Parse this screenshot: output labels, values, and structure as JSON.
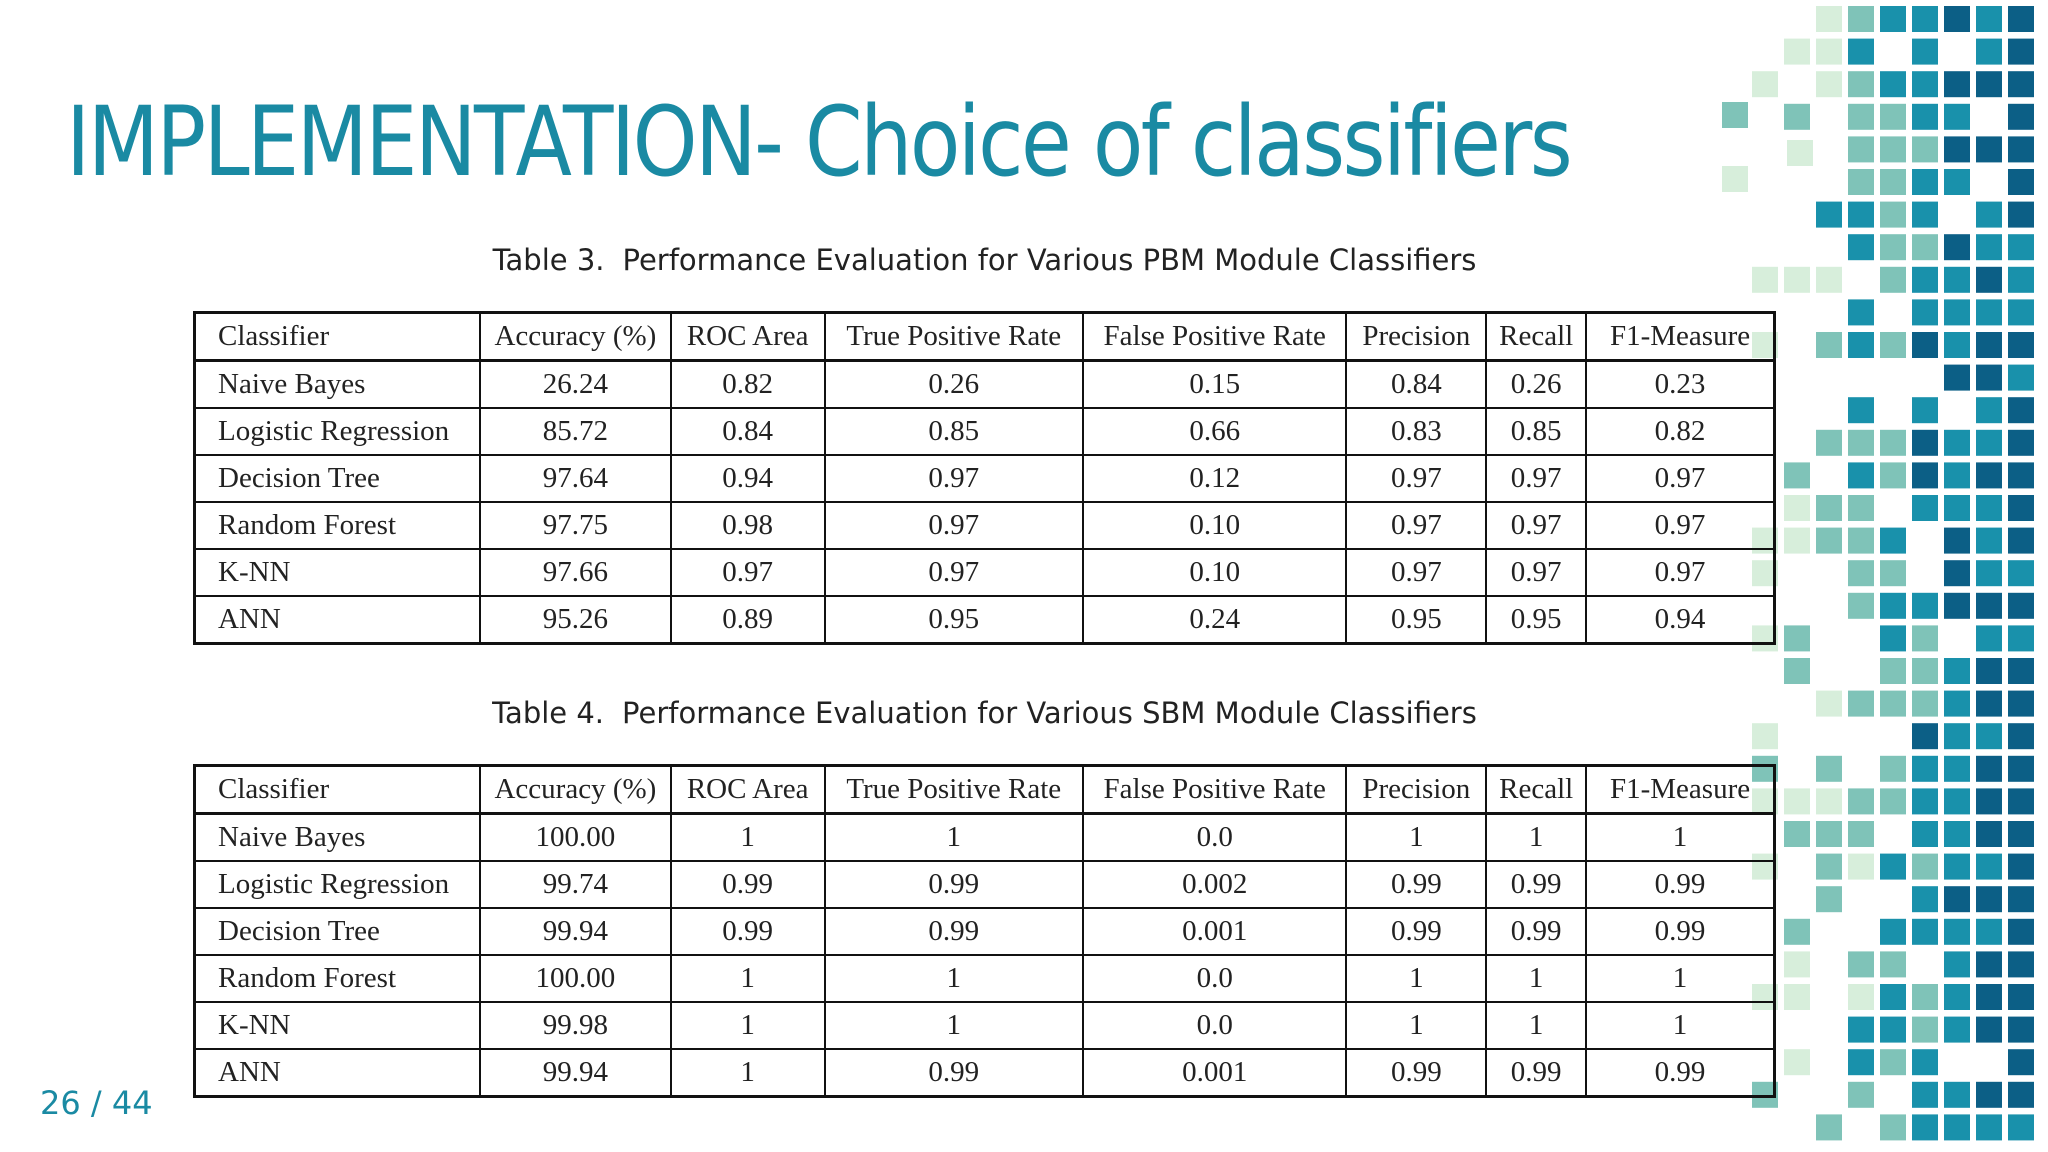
{
  "title": "IMPLEMENTATION- Choice of classifiers",
  "page": {
    "current": "26",
    "sep": " / ",
    "total": "44"
  },
  "tables": [
    {
      "caption_num": "Table 3.",
      "caption_text": "Performance Evaluation for Various PBM Module Classifiers",
      "headers": [
        "Classifier",
        "Accuracy (%)",
        "ROC Area",
        "True Positive Rate",
        "False Positive Rate",
        "Precision",
        "Recall",
        "F1-Measure"
      ],
      "rows": [
        [
          "Naive Bayes",
          "26.24",
          "0.82",
          "0.26",
          "0.15",
          "0.84",
          "0.26",
          "0.23"
        ],
        [
          "Logistic Regression",
          "85.72",
          "0.84",
          "0.85",
          "0.66",
          "0.83",
          "0.85",
          "0.82"
        ],
        [
          "Decision Tree",
          "97.64",
          "0.94",
          "0.97",
          "0.12",
          "0.97",
          "0.97",
          "0.97"
        ],
        [
          "Random Forest",
          "97.75",
          "0.98",
          "0.97",
          "0.10",
          "0.97",
          "0.97",
          "0.97"
        ],
        [
          "K-NN",
          "97.66",
          "0.97",
          "0.97",
          "0.10",
          "0.97",
          "0.97",
          "0.97"
        ],
        [
          "ANN",
          "95.26",
          "0.89",
          "0.95",
          "0.24",
          "0.95",
          "0.95",
          "0.94"
        ]
      ]
    },
    {
      "caption_num": "Table 4.",
      "caption_text": "Performance Evaluation for Various SBM Module Classifiers",
      "headers": [
        "Classifier",
        "Accuracy (%)",
        "ROC Area",
        "True Positive Rate",
        "False Positive Rate",
        "Precision",
        "Recall",
        "F1-Measure"
      ],
      "rows": [
        [
          "Naive Bayes",
          "100.00",
          "1",
          "1",
          "0.0",
          "1",
          "1",
          "1"
        ],
        [
          "Logistic Regression",
          "99.74",
          "0.99",
          "0.99",
          "0.002",
          "0.99",
          "0.99",
          "0.99"
        ],
        [
          "Decision Tree",
          "99.94",
          "0.99",
          "0.99",
          "0.001",
          "0.99",
          "0.99",
          "0.99"
        ],
        [
          "Random Forest",
          "100.00",
          "1",
          "1",
          "0.0",
          "1",
          "1",
          "1"
        ],
        [
          "K-NN",
          "99.98",
          "1",
          "1",
          "0.0",
          "1",
          "1",
          "1"
        ],
        [
          "ANN",
          "99.94",
          "1",
          "0.99",
          "0.001",
          "0.99",
          "0.99",
          "0.99"
        ]
      ]
    }
  ],
  "decoration": {
    "palette": [
      "#d7eedb",
      "#7fc3b8",
      "#1991ab",
      "#0c5f86"
    ],
    "icon": "teal-square-mosaic"
  }
}
